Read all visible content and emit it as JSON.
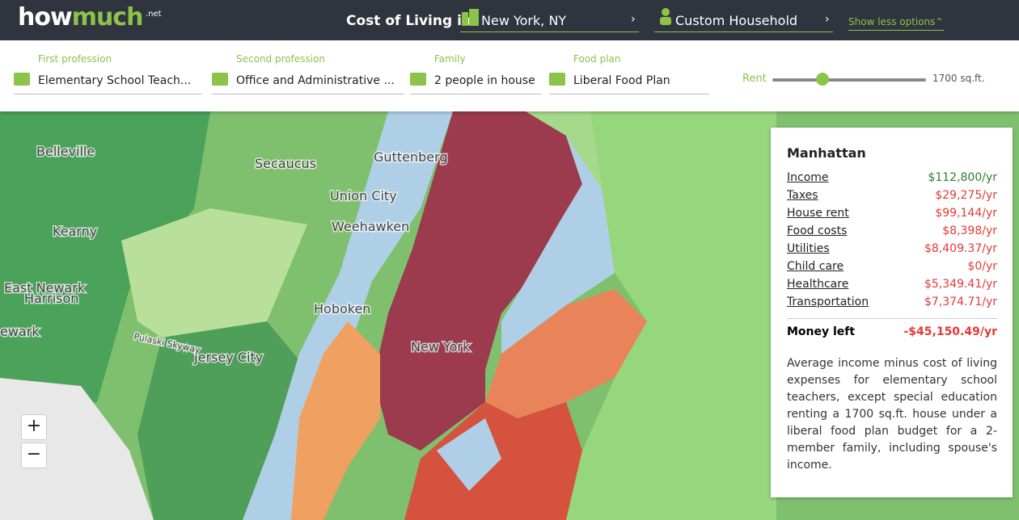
{
  "header": {
    "logo_first": "how",
    "logo_second": "much",
    "logo_suffix": ".net",
    "title": "Cost of Living in",
    "location": "New York, NY",
    "household": "Custom Household",
    "options_toggle": "Show less options"
  },
  "filters": [
    {
      "label": "First profession",
      "value": "Elementary School Teach..."
    },
    {
      "label": "Second profession",
      "value": "Office and Administrative ..."
    },
    {
      "label": "Family",
      "value": "2 people in house"
    },
    {
      "label": "Food plan",
      "value": "Liberal Food Plan"
    }
  ],
  "rent": {
    "label": "Rent",
    "value": "1700 sq.ft."
  },
  "map": {
    "labels": [
      "Belleville",
      "Secaucus",
      "Guttenberg",
      "Union City",
      "Weehawken",
      "Kearny",
      "Hoboken",
      "East Newark",
      "Harrison",
      "ewark",
      "Jersey City",
      "New York",
      "Pulaski Skyway"
    ],
    "zoom_in": "+",
    "zoom_out": "−"
  },
  "panel": {
    "title": "Manhattan",
    "rows": [
      {
        "label": "Income",
        "value": "$112,800/yr"
      },
      {
        "label": "Taxes",
        "value": "$29,275/yr"
      },
      {
        "label": "House rent",
        "value": "$99,144/yr"
      },
      {
        "label": "Food costs",
        "value": "$8,398/yr"
      },
      {
        "label": "Utilities",
        "value": "$8,409.37/yr"
      },
      {
        "label": "Child care",
        "value": "$0/yr"
      },
      {
        "label": "Healthcare",
        "value": "$5,349.41/yr"
      },
      {
        "label": "Transportation",
        "value": "$7,374.71/yr"
      }
    ],
    "total": {
      "label": "Money left",
      "value": "-$45,150.49/yr"
    },
    "description": "Average income minus cost of living expenses for elementary school teachers, except special education renting a 1700 sq.ft. house under a liberal food plan budget for a 2-member family, including spouse's income."
  }
}
